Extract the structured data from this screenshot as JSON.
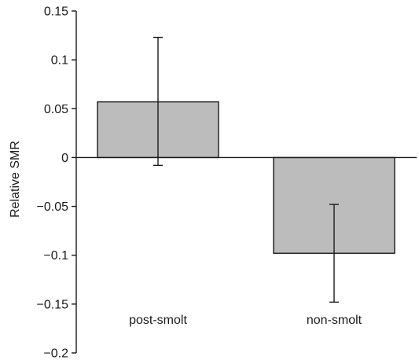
{
  "chart_data": {
    "type": "bar",
    "title": "",
    "xlabel": "",
    "ylabel": "Relative SMR",
    "categories": [
      "post-smolt",
      "non-smolt"
    ],
    "values": [
      0.057,
      -0.098
    ],
    "error_low": [
      -0.008,
      -0.148
    ],
    "error_high": [
      0.123,
      -0.048
    ],
    "ylim": [
      -0.2,
      0.15
    ],
    "yticks": [
      0.15,
      0.1,
      0.05,
      0,
      -0.05,
      -0.1,
      -0.15,
      -0.2
    ],
    "ytick_labels": [
      "0.15",
      "0.1",
      "0.05",
      "0",
      "−0.05",
      "−0.1",
      "−0.15",
      "−0.2"
    ],
    "grid": false,
    "bar_color": "#bcbcbc",
    "bar_stroke": "#1a1a1a"
  }
}
